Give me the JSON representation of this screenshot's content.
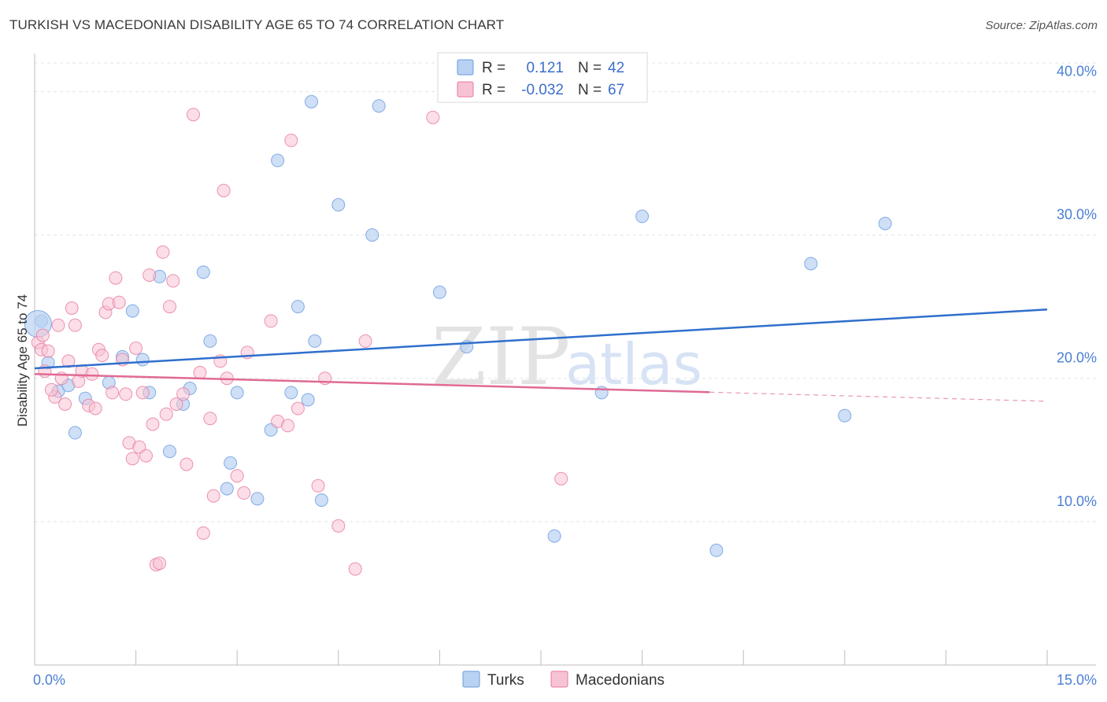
{
  "header": {
    "title": "TURKISH VS MACEDONIAN DISABILITY AGE 65 TO 74 CORRELATION CHART",
    "source": "Source: ZipAtlas.com"
  },
  "watermark": {
    "zip": "ZIP",
    "atlas": "atlas"
  },
  "chart_data": {
    "type": "scatter",
    "title": "TURKISH VS MACEDONIAN DISABILITY AGE 65 TO 74 CORRELATION CHART",
    "xlabel": "",
    "ylabel": "Disability Age 65 to 74",
    "xlim": [
      0,
      15
    ],
    "ylim": [
      0,
      42
    ],
    "x_tick_labels": [
      {
        "value": 0,
        "label": "0.0%"
      },
      {
        "value": 15,
        "label": "15.0%"
      }
    ],
    "y_tick_labels": [
      {
        "value": 10,
        "label": "10.0%"
      },
      {
        "value": 20,
        "label": "20.0%"
      },
      {
        "value": 30,
        "label": "30.0%"
      },
      {
        "value": 40,
        "label": "40.0%"
      }
    ],
    "grid": true,
    "legend_position": "top-center",
    "legend": [
      {
        "name": "Turks",
        "r_label": "R =",
        "r_value": "0.121",
        "n_label": "N =",
        "n_value": "42",
        "color": "#6a9be0",
        "fill": "#b9d1f2"
      },
      {
        "name": "Macedonians",
        "r_label": "R =",
        "r_value": "-0.032",
        "n_label": "N =",
        "n_value": "67",
        "color": "#e8799e",
        "fill": "#f7c3d3"
      }
    ],
    "series": [
      {
        "name": "Turks",
        "color": "#6a9be0",
        "fill": "#b9d1f2",
        "trend": {
          "x": [
            0,
            15
          ],
          "y": [
            20.7,
            24.8
          ],
          "color": "#2f6fcc",
          "solid_until": 15
        },
        "points": [
          [
            0.1,
            24.0
          ],
          [
            0.2,
            21.1
          ],
          [
            0.35,
            19.1
          ],
          [
            0.5,
            19.5
          ],
          [
            0.6,
            16.2
          ],
          [
            0.75,
            18.6
          ],
          [
            1.1,
            19.7
          ],
          [
            1.3,
            21.5
          ],
          [
            1.45,
            24.7
          ],
          [
            1.6,
            21.3
          ],
          [
            1.7,
            19.0
          ],
          [
            1.85,
            27.1
          ],
          [
            2.0,
            14.9
          ],
          [
            2.2,
            18.2
          ],
          [
            2.3,
            19.3
          ],
          [
            2.5,
            27.4
          ],
          [
            2.6,
            22.6
          ],
          [
            2.85,
            12.3
          ],
          [
            2.9,
            14.1
          ],
          [
            3.0,
            19.0
          ],
          [
            3.3,
            11.6
          ],
          [
            3.5,
            16.4
          ],
          [
            3.6,
            35.2
          ],
          [
            3.8,
            19.0
          ],
          [
            3.9,
            25.0
          ],
          [
            4.05,
            18.5
          ],
          [
            4.1,
            39.3
          ],
          [
            4.15,
            22.6
          ],
          [
            4.25,
            11.5
          ],
          [
            4.5,
            32.1
          ],
          [
            5.0,
            30.0
          ],
          [
            5.1,
            39.0
          ],
          [
            6.0,
            26.0
          ],
          [
            6.4,
            22.2
          ],
          [
            7.7,
            9.0
          ],
          [
            8.4,
            19.0
          ],
          [
            9.0,
            31.3
          ],
          [
            10.1,
            8.0
          ],
          [
            11.5,
            28.0
          ],
          [
            12.0,
            17.4
          ],
          [
            12.6,
            30.8
          ],
          [
            0.05,
            23.8
          ]
        ]
      },
      {
        "name": "Macedonians",
        "color": "#e8799e",
        "fill": "#f7c3d3",
        "trend": {
          "x": [
            0,
            15
          ],
          "y": [
            20.3,
            18.4
          ],
          "color": "#e06a94",
          "solid_until": 10.0
        },
        "points": [
          [
            0.05,
            22.5
          ],
          [
            0.1,
            22.0
          ],
          [
            0.15,
            20.5
          ],
          [
            0.2,
            21.9
          ],
          [
            0.3,
            18.7
          ],
          [
            0.35,
            23.7
          ],
          [
            0.4,
            20.0
          ],
          [
            0.45,
            18.2
          ],
          [
            0.5,
            21.2
          ],
          [
            0.55,
            24.9
          ],
          [
            0.6,
            23.7
          ],
          [
            0.7,
            20.5
          ],
          [
            0.8,
            18.1
          ],
          [
            0.85,
            20.3
          ],
          [
            0.9,
            17.9
          ],
          [
            0.95,
            22.0
          ],
          [
            1.0,
            21.6
          ],
          [
            1.05,
            24.6
          ],
          [
            1.1,
            25.2
          ],
          [
            1.2,
            27.0
          ],
          [
            1.25,
            25.3
          ],
          [
            1.3,
            21.3
          ],
          [
            1.4,
            15.5
          ],
          [
            1.45,
            14.4
          ],
          [
            1.5,
            22.1
          ],
          [
            1.55,
            15.2
          ],
          [
            1.6,
            19.0
          ],
          [
            1.65,
            14.6
          ],
          [
            1.7,
            27.2
          ],
          [
            1.75,
            16.8
          ],
          [
            1.8,
            7.0
          ],
          [
            1.85,
            7.1
          ],
          [
            1.9,
            28.8
          ],
          [
            1.95,
            17.5
          ],
          [
            2.0,
            25.0
          ],
          [
            2.05,
            26.8
          ],
          [
            2.1,
            18.2
          ],
          [
            2.2,
            18.9
          ],
          [
            2.25,
            14.0
          ],
          [
            2.35,
            38.4
          ],
          [
            2.45,
            20.4
          ],
          [
            2.5,
            9.2
          ],
          [
            2.6,
            17.2
          ],
          [
            2.65,
            11.8
          ],
          [
            2.75,
            21.2
          ],
          [
            2.8,
            33.1
          ],
          [
            2.85,
            20.0
          ],
          [
            3.0,
            13.2
          ],
          [
            3.1,
            12.0
          ],
          [
            3.15,
            21.8
          ],
          [
            3.5,
            24.0
          ],
          [
            3.6,
            17.0
          ],
          [
            3.75,
            16.7
          ],
          [
            3.8,
            36.6
          ],
          [
            3.9,
            17.9
          ],
          [
            4.2,
            12.5
          ],
          [
            4.3,
            20.0
          ],
          [
            4.5,
            9.7
          ],
          [
            4.75,
            6.7
          ],
          [
            4.9,
            22.6
          ],
          [
            5.9,
            38.2
          ],
          [
            7.8,
            13.0
          ],
          [
            0.25,
            19.2
          ],
          [
            1.15,
            19.0
          ],
          [
            0.65,
            19.8
          ],
          [
            1.35,
            18.9
          ],
          [
            0.12,
            23.0
          ]
        ]
      }
    ]
  }
}
